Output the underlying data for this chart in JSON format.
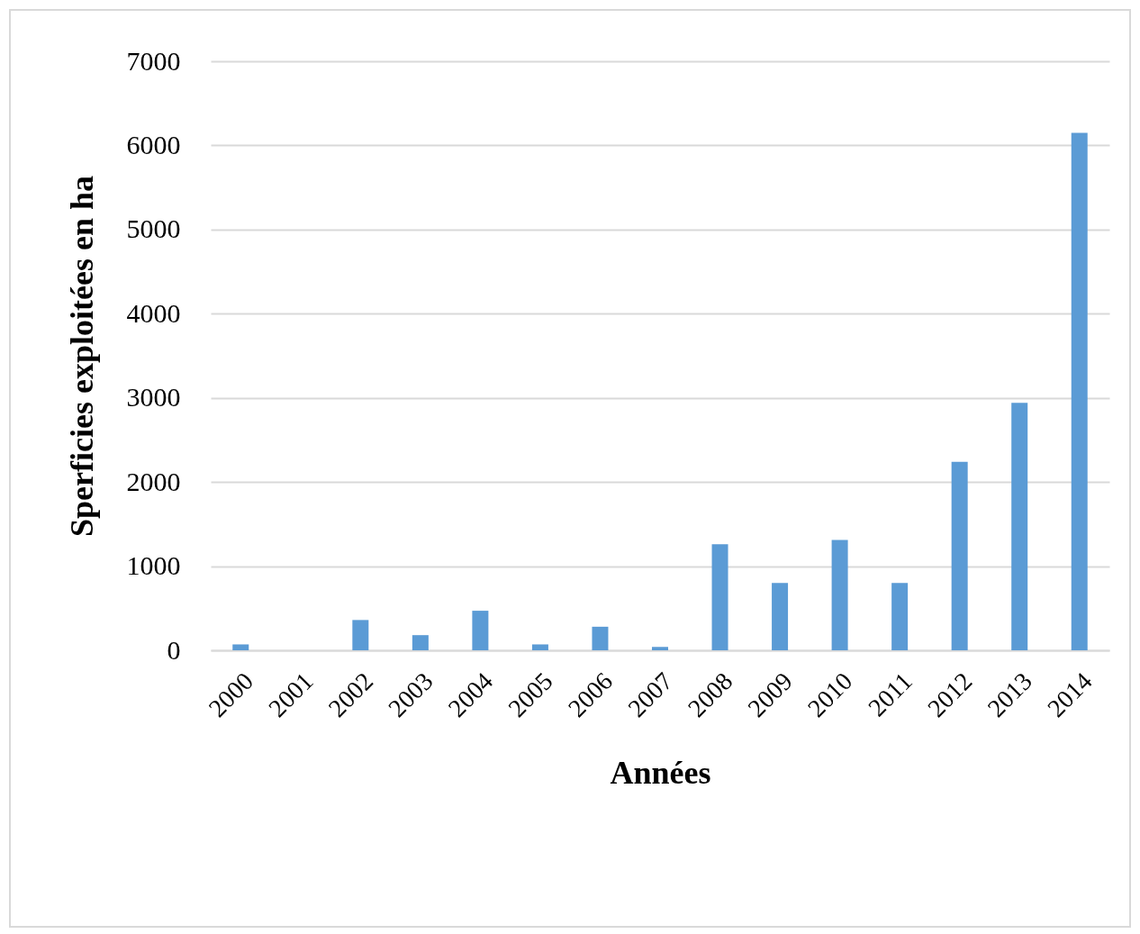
{
  "chart_data": {
    "type": "bar",
    "xlabel": "Années",
    "ylabel": "Sperficies exploitées en ha",
    "categories": [
      "2000",
      "2001",
      "2002",
      "2003",
      "2004",
      "2005",
      "2006",
      "2007",
      "2008",
      "2009",
      "2010",
      "2011",
      "2012",
      "2013",
      "2014"
    ],
    "values": [
      70,
      0,
      360,
      180,
      470,
      70,
      280,
      40,
      1260,
      800,
      1310,
      800,
      2240,
      2940,
      6150
    ],
    "color": "#5b9bd5",
    "ylim": [
      0,
      7000
    ],
    "yticks": [
      0,
      1000,
      2000,
      3000,
      4000,
      5000,
      6000,
      7000
    ],
    "grid": "y"
  }
}
